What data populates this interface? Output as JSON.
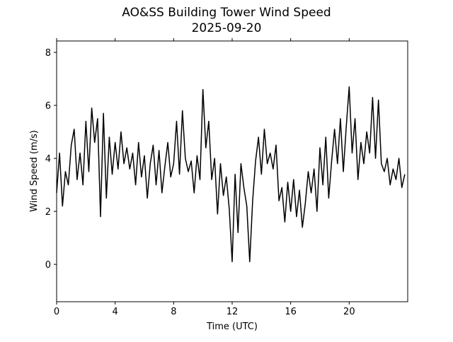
{
  "chart_data": {
    "type": "line",
    "title": "AO&SS Building Tower Wind Speed",
    "subtitle": "2025-09-20",
    "x_label": "Time (UTC)",
    "y_label": "Wind Speed (m/s)",
    "color": "#000000",
    "x": [
      0,
      0.2,
      0.4,
      0.6,
      0.8,
      1,
      1.2,
      1.4,
      1.6,
      1.8,
      2,
      2.2,
      2.4,
      2.6,
      2.8,
      3,
      3.2,
      3.4,
      3.6,
      3.8,
      4,
      4.2,
      4.4,
      4.6,
      4.8,
      5,
      5.2,
      5.4,
      5.6,
      5.8,
      6,
      6.2,
      6.4,
      6.6,
      6.8,
      7,
      7.2,
      7.4,
      7.6,
      7.8,
      8,
      8.2,
      8.4,
      8.6,
      8.8,
      9,
      9.2,
      9.4,
      9.6,
      9.8,
      10,
      10.2,
      10.4,
      10.6,
      10.8,
      11,
      11.2,
      11.4,
      11.6,
      11.8,
      12,
      12.2,
      12.4,
      12.6,
      12.8,
      13,
      13.2,
      13.4,
      13.6,
      13.8,
      14,
      14.2,
      14.4,
      14.6,
      14.8,
      15,
      15.2,
      15.4,
      15.6,
      15.8,
      16,
      16.2,
      16.4,
      16.6,
      16.8,
      17,
      17.2,
      17.4,
      17.6,
      17.8,
      18,
      18.2,
      18.4,
      18.6,
      18.8,
      19,
      19.2,
      19.4,
      19.6,
      19.8,
      20,
      20.2,
      20.4,
      20.6,
      20.8,
      21,
      21.2,
      21.4,
      21.6,
      21.8,
      22,
      22.2,
      22.4,
      22.6,
      22.8,
      23,
      23.2,
      23.4,
      23.6,
      23.8
    ],
    "values": [
      2.7,
      4.2,
      2.2,
      3.5,
      3.0,
      4.5,
      5.1,
      3.2,
      4.2,
      3.0,
      5.4,
      3.5,
      5.9,
      4.6,
      5.5,
      1.8,
      5.7,
      2.5,
      4.8,
      3.4,
      4.6,
      3.6,
      5.0,
      3.8,
      4.4,
      3.6,
      4.2,
      3.0,
      4.6,
      3.3,
      4.1,
      2.5,
      3.8,
      4.5,
      3.0,
      4.3,
      2.7,
      3.7,
      4.6,
      3.3,
      3.8,
      5.4,
      3.4,
      5.8,
      4.0,
      3.5,
      3.9,
      2.7,
      4.1,
      3.2,
      6.6,
      4.4,
      5.4,
      3.2,
      4.0,
      1.9,
      3.8,
      2.6,
      3.3,
      2.1,
      0.1,
      3.4,
      1.2,
      3.8,
      2.9,
      2.2,
      0.1,
      2.4,
      3.9,
      4.8,
      3.4,
      5.1,
      3.8,
      4.2,
      3.6,
      4.5,
      2.4,
      2.9,
      1.6,
      3.1,
      2.0,
      3.2,
      1.8,
      2.8,
      1.4,
      2.3,
      3.5,
      2.7,
      3.6,
      2.0,
      4.4,
      3.0,
      4.8,
      2.5,
      3.9,
      5.1,
      3.8,
      5.5,
      3.5,
      5.2,
      6.7,
      4.2,
      5.5,
      3.2,
      4.6,
      3.8,
      5.0,
      4.2,
      6.3,
      4.0,
      6.2,
      3.8,
      3.5,
      4.0,
      3.0,
      3.6,
      3.2,
      4.0,
      2.9,
      3.4
    ],
    "xlim": [
      0,
      24
    ],
    "ylim": [
      -1.41,
      8.43
    ],
    "xticks": [
      0,
      4,
      8,
      12,
      16,
      20
    ],
    "yticks": [
      0,
      2,
      4,
      6,
      8
    ]
  }
}
